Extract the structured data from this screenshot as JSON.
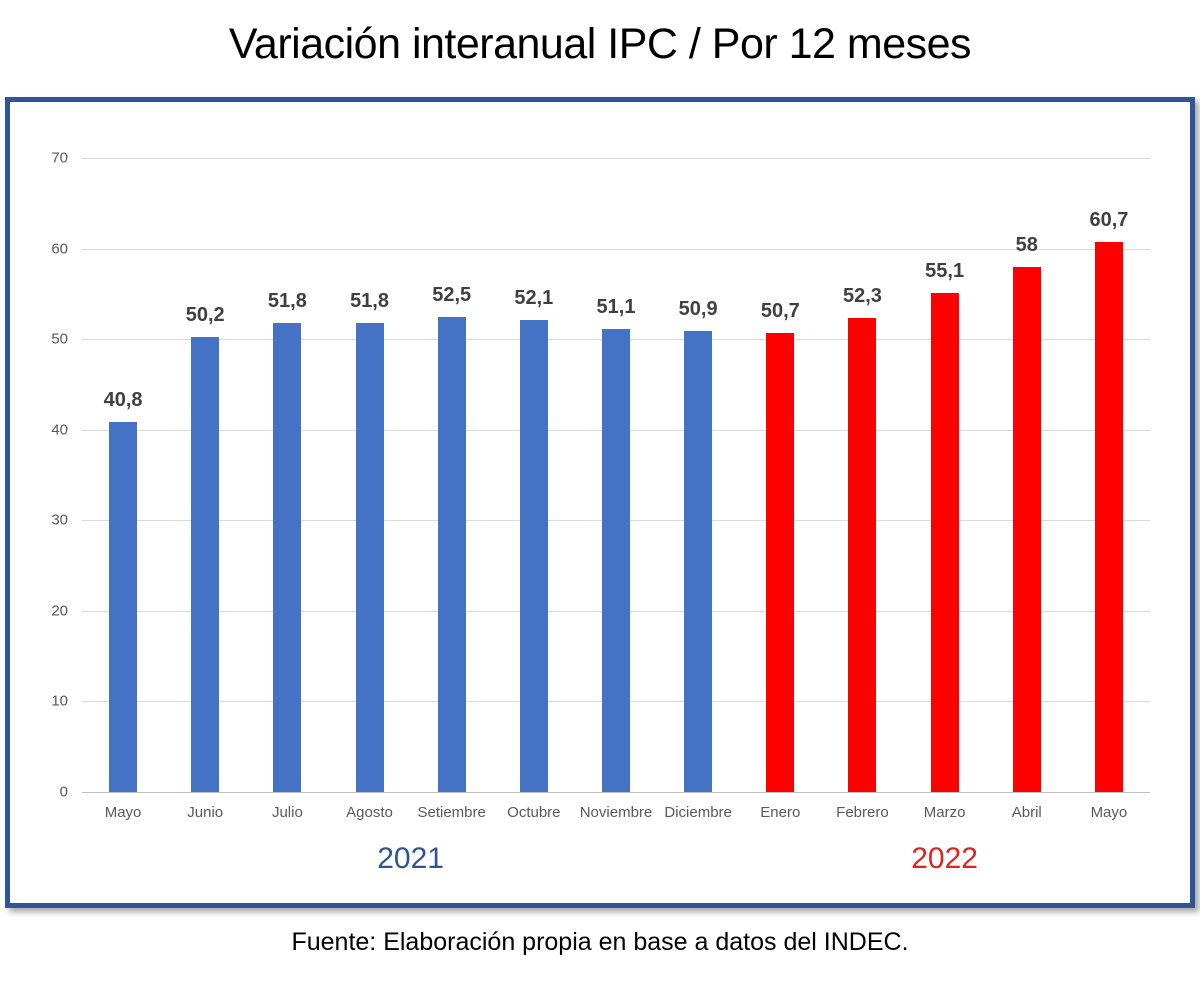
{
  "page": {
    "title": "Variación interanual IPC / Por 12 meses",
    "source_note": "Fuente: Elaboración propia en base a datos del INDEC."
  },
  "chart_data": {
    "type": "bar",
    "title": "Variación interanual IPC / Por 12 meses",
    "categories": [
      "Mayo",
      "Junio",
      "Julio",
      "Agosto",
      "Setiembre",
      "Octubre",
      "Noviembre",
      "Diciembre",
      "Enero",
      "Febrero",
      "Marzo",
      "Abril",
      "Mayo"
    ],
    "values": [
      40.8,
      50.2,
      51.8,
      51.8,
      52.5,
      52.1,
      51.1,
      50.9,
      50.7,
      52.3,
      55.1,
      58,
      60.7
    ],
    "value_labels": [
      "40,8",
      "50,2",
      "51,8",
      "51,8",
      "52,5",
      "52,1",
      "51,1",
      "50,9",
      "50,7",
      "52,3",
      "55,1",
      "58",
      "60,7"
    ],
    "bar_years": [
      "2021",
      "2021",
      "2021",
      "2021",
      "2021",
      "2021",
      "2021",
      "2021",
      "2022",
      "2022",
      "2022",
      "2022",
      "2022"
    ],
    "year_groups": [
      {
        "label": "2021",
        "text_color": "#2F5496"
      },
      {
        "label": "2022",
        "text_color": "#D8261F"
      }
    ],
    "bar_colors": {
      "2021": "#4472C4",
      "2022": "#FE0000"
    },
    "colors": {
      "gridline": "#D9D9D9",
      "axis_line": "#BFBFBF",
      "tick_label": "#595959",
      "value_label": "#404040",
      "frame_border": "#2F5597"
    },
    "ylim": [
      0,
      70
    ],
    "yticks": [
      0,
      10,
      20,
      30,
      40,
      50,
      60,
      70
    ],
    "grid": true,
    "legend": "none",
    "xlabel": "",
    "ylabel": ""
  }
}
